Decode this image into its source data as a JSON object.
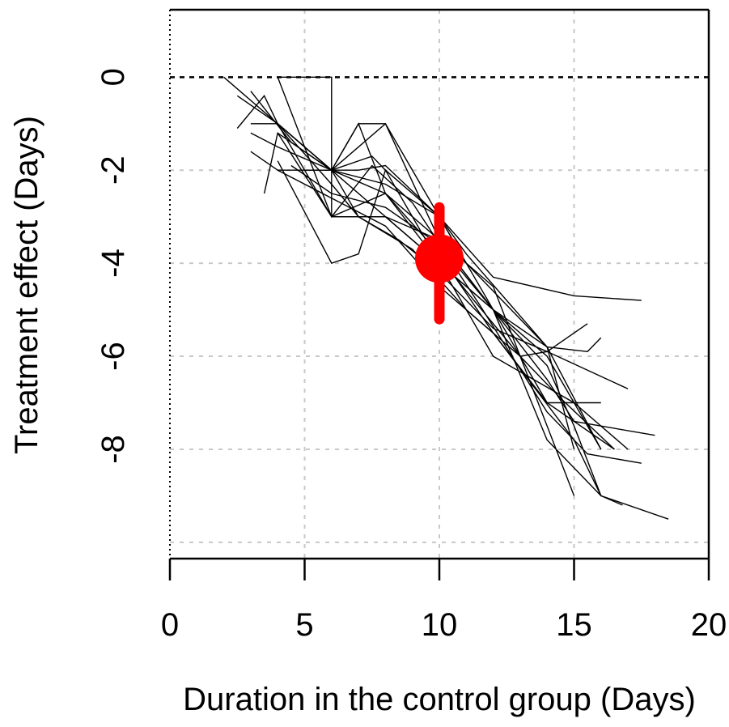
{
  "chart_data": {
    "type": "line",
    "title": "",
    "xlabel": "Duration in the control group (Days)",
    "ylabel": "Treatment effect (Days)",
    "xlim": [
      0,
      20
    ],
    "ylim": [
      -10.35,
      1.45
    ],
    "x_ticks": [
      0,
      5,
      10,
      15,
      20
    ],
    "x_tick_labels": [
      "0",
      "5",
      "10",
      "15",
      "20"
    ],
    "y_ticks": [
      0,
      -2,
      -4,
      -6,
      -8
    ],
    "y_tick_labels": [
      "0",
      "-2",
      "-4",
      "-6",
      "-8"
    ],
    "grid": true,
    "grid_x": [
      5,
      10,
      15
    ],
    "grid_y": [
      -2,
      -4,
      -6,
      -8,
      -10
    ],
    "reference_lines": [
      {
        "axis": "y",
        "value": 0,
        "style": "dashed"
      },
      {
        "axis": "x",
        "value": 0,
        "style": "dotted"
      }
    ],
    "line_color": "#000000",
    "highlight_color": "#ff0000",
    "series": [
      {
        "x": [
          2.0,
          4.0,
          6.0,
          8.0,
          10.0,
          12.0,
          14.0,
          16.0
        ],
        "y": [
          0.0,
          -1.0,
          -2.0,
          -3.0,
          -4.0,
          -5.0,
          -7.8,
          -9.0
        ]
      },
      {
        "x": [
          2.5,
          4.0,
          6.0,
          8.0,
          10.0,
          12.0,
          14.0,
          16.5
        ],
        "y": [
          -0.4,
          -1.0,
          -2.0,
          -2.5,
          -3.8,
          -5.5,
          -7.0,
          -8.0
        ]
      },
      {
        "x": [
          3.0,
          4.0,
          6.0,
          8.0,
          10.0,
          12.0,
          15.0,
          17.0
        ],
        "y": [
          -1.0,
          -1.0,
          -3.0,
          -3.0,
          -4.0,
          -6.0,
          -7.0,
          -8.0
        ]
      },
      {
        "x": [
          4.0,
          5.0,
          6.0,
          8.0,
          10.0,
          12.0,
          14.0,
          15.0,
          16.0
        ],
        "y": [
          0.0,
          -1.5,
          -3.0,
          -3.0,
          -3.5,
          -5.0,
          -6.0,
          -7.0,
          -8.0
        ]
      },
      {
        "x": [
          3.0,
          4.0,
          6.0,
          7.0,
          8.0,
          10.0,
          11.0,
          14.0,
          15.0
        ],
        "y": [
          -1.6,
          -2.0,
          -2.0,
          -2.0,
          -1.9,
          -3.0,
          -3.8,
          -5.8,
          -8.0
        ]
      },
      {
        "x": [
          2.5,
          3.5,
          4.0,
          6.0,
          8.0,
          10.0,
          11.0,
          14.0,
          16.0
        ],
        "y": [
          -1.1,
          -0.4,
          -1.0,
          -2.0,
          -1.0,
          -3.0,
          -4.0,
          -5.8,
          -8.0
        ]
      },
      {
        "x": [
          4.0,
          6.0,
          7.5,
          9.0,
          11.5,
          14.0,
          15.5,
          17.5
        ],
        "y": [
          -1.2,
          -3.0,
          -1.9,
          -2.7,
          -4.9,
          -7.2,
          -8.1,
          -8.3
        ]
      },
      {
        "x": [
          4.0,
          6.0,
          6.0,
          8.0,
          10.0,
          12.0,
          14.0,
          15.0,
          18.0
        ],
        "y": [
          0.0,
          0.0,
          -3.0,
          -2.5,
          -3.5,
          -5.0,
          -6.5,
          -7.4,
          -7.7
        ]
      },
      {
        "x": [
          3.0,
          4.5,
          6.0,
          7.5,
          8.0,
          10.0,
          12.0,
          14.0,
          16.0
        ],
        "y": [
          -0.3,
          -1.4,
          -2.0,
          -1.7,
          -2.0,
          -3.0,
          -5.0,
          -7.0,
          -7.0
        ]
      },
      {
        "x": [
          3.5,
          4.0,
          6.0,
          7.0,
          8.0,
          10.0,
          12.0,
          14.0,
          15.0
        ],
        "y": [
          -2.5,
          -1.2,
          -2.0,
          -1.0,
          -1.0,
          -3.5,
          -4.5,
          -7.5,
          -9.0
        ]
      },
      {
        "x": [
          4.0,
          6.0,
          7.0,
          8.0,
          9.5,
          11.0,
          13.0,
          14.5,
          16.5
        ],
        "y": [
          -1.8,
          -4.0,
          -3.8,
          -2.0,
          -3.5,
          -4.6,
          -6.0,
          -6.9,
          -8.0
        ]
      },
      {
        "x": [
          4.0,
          6.0,
          8.0,
          10.0,
          12.0,
          15.0,
          16.0,
          18.5
        ],
        "y": [
          -2.0,
          -2.6,
          -3.2,
          -4.5,
          -5.5,
          -7.8,
          -9.0,
          -9.5
        ]
      },
      {
        "x": [
          3.0,
          4.0,
          6.0,
          7.0,
          9.0,
          11.0,
          13.0,
          14.0,
          15.0,
          15.5
        ],
        "y": [
          -1.2,
          -1.5,
          -2.0,
          -3.0,
          -3.7,
          -5.0,
          -6.0,
          -5.9,
          -5.5,
          -5.3
        ]
      },
      {
        "x": [
          4.0,
          6.0,
          7.0,
          8.0,
          10.0,
          12.0,
          14.0,
          15.5,
          16.0
        ],
        "y": [
          -1.0,
          -2.0,
          -1.0,
          -2.5,
          -4.0,
          -5.0,
          -5.8,
          -5.9,
          -5.6
        ]
      },
      {
        "x": [
          4.0,
          6.0,
          7.0,
          8.5,
          10.0,
          12.0,
          14.0,
          17.0
        ],
        "y": [
          -1.0,
          -2.3,
          -3.0,
          -3.5,
          -4.2,
          -5.4,
          -5.9,
          -6.7
        ]
      },
      {
        "x": [
          5.0,
          6.0,
          8.0,
          10.0,
          12.0,
          15.0,
          17.5
        ],
        "y": [
          -2.0,
          -2.0,
          -2.3,
          -3.0,
          -4.3,
          -4.7,
          -4.8
        ]
      },
      {
        "x": [
          4.5,
          6.0,
          8.0,
          10.0,
          12.0,
          14.0,
          15.0,
          16.0,
          16.8
        ],
        "y": [
          -1.9,
          -2.5,
          -2.8,
          -3.6,
          -5.0,
          -6.2,
          -7.5,
          -9.0,
          -9.2
        ]
      }
    ],
    "highlight": {
      "x": 10,
      "y": -3.9,
      "y_low": -5.2,
      "y_high": -2.8
    }
  }
}
